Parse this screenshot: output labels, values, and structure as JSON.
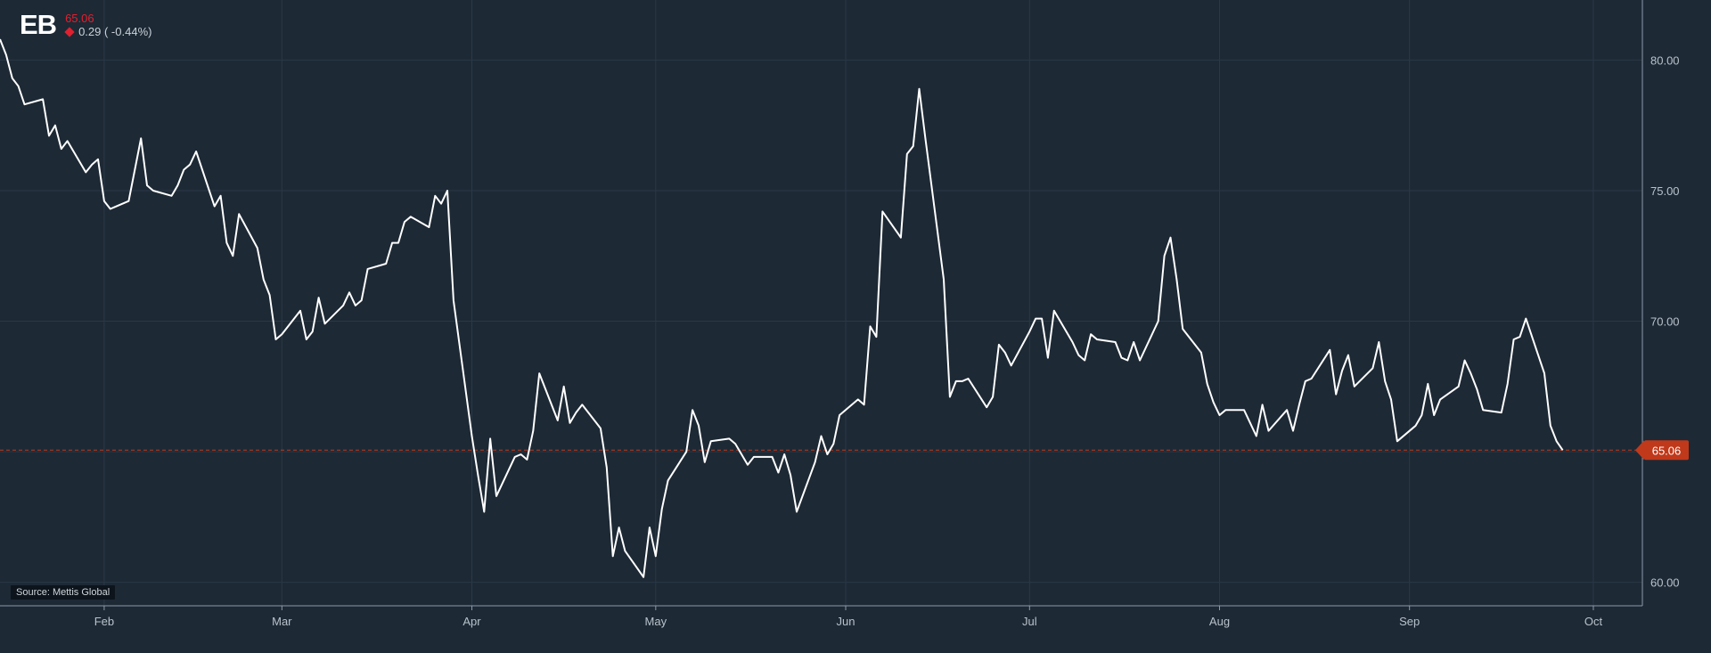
{
  "header": {
    "symbol": "EB",
    "price": "65.06",
    "change": "0.29 ( -0.44%)"
  },
  "source": "Source: Mettis Global",
  "colors": {
    "background": "#1d2935",
    "line": "#ffffff",
    "last_price_marker": "#c0391b",
    "reference_line": "#c0391b",
    "down": "#e0202e"
  },
  "icons": [
    "down-diamond-icon",
    "last-price-arrow-icon"
  ],
  "chart_data": {
    "type": "line",
    "title": "",
    "xlabel": "",
    "ylabel": "",
    "x_ticks": [
      "Feb",
      "Mar",
      "Apr",
      "May",
      "Jun",
      "Jul",
      "Aug",
      "Sep",
      "Oct"
    ],
    "y_ticks": [
      "60.00",
      "65.00",
      "70.00",
      "75.00",
      "80.00"
    ],
    "ylim": [
      59.1,
      82.3
    ],
    "x_range": [
      "2024-01-15",
      "2024-10-09"
    ],
    "grid": true,
    "last_price": 65.06,
    "last_price_label": "65.06",
    "series": [
      {
        "points": [
          [
            "2024-01-15",
            80.8
          ],
          [
            "2024-01-16",
            80.2
          ],
          [
            "2024-01-17",
            79.3
          ],
          [
            "2024-01-18",
            79.0
          ],
          [
            "2024-01-19",
            78.3
          ],
          [
            "2024-01-22",
            78.5
          ],
          [
            "2024-01-23",
            77.1
          ],
          [
            "2024-01-24",
            77.5
          ],
          [
            "2024-01-25",
            76.6
          ],
          [
            "2024-01-26",
            76.9
          ],
          [
            "2024-01-29",
            75.7
          ],
          [
            "2024-01-30",
            76.0
          ],
          [
            "2024-01-31",
            76.2
          ],
          [
            "2024-02-01",
            74.6
          ],
          [
            "2024-02-02",
            74.3
          ],
          [
            "2024-02-05",
            74.6
          ],
          [
            "2024-02-06",
            75.8
          ],
          [
            "2024-02-07",
            77.0
          ],
          [
            "2024-02-08",
            75.2
          ],
          [
            "2024-02-09",
            75.0
          ],
          [
            "2024-02-12",
            74.8
          ],
          [
            "2024-02-13",
            75.2
          ],
          [
            "2024-02-14",
            75.8
          ],
          [
            "2024-02-15",
            76.0
          ],
          [
            "2024-02-16",
            76.5
          ],
          [
            "2024-02-19",
            74.4
          ],
          [
            "2024-02-20",
            74.8
          ],
          [
            "2024-02-21",
            73.0
          ],
          [
            "2024-02-22",
            72.5
          ],
          [
            "2024-02-23",
            74.1
          ],
          [
            "2024-02-26",
            72.8
          ],
          [
            "2024-02-27",
            71.6
          ],
          [
            "2024-02-28",
            71.0
          ],
          [
            "2024-02-29",
            69.3
          ],
          [
            "2024-03-01",
            69.5
          ],
          [
            "2024-03-04",
            70.4
          ],
          [
            "2024-03-05",
            69.3
          ],
          [
            "2024-03-06",
            69.6
          ],
          [
            "2024-03-07",
            70.9
          ],
          [
            "2024-03-08",
            69.9
          ],
          [
            "2024-03-11",
            70.6
          ],
          [
            "2024-03-12",
            71.1
          ],
          [
            "2024-03-13",
            70.6
          ],
          [
            "2024-03-14",
            70.8
          ],
          [
            "2024-03-15",
            72.0
          ],
          [
            "2024-03-18",
            72.2
          ],
          [
            "2024-03-19",
            73.0
          ],
          [
            "2024-03-20",
            73.0
          ],
          [
            "2024-03-21",
            73.8
          ],
          [
            "2024-03-22",
            74.0
          ],
          [
            "2024-03-25",
            73.6
          ],
          [
            "2024-03-26",
            74.8
          ],
          [
            "2024-03-27",
            74.5
          ],
          [
            "2024-03-28",
            75.0
          ],
          [
            "2024-03-29",
            70.8
          ],
          [
            "2024-04-01",
            65.6
          ],
          [
            "2024-04-02",
            64.1
          ],
          [
            "2024-04-03",
            62.7
          ],
          [
            "2024-04-04",
            65.5
          ],
          [
            "2024-04-05",
            63.3
          ],
          [
            "2024-04-08",
            64.8
          ],
          [
            "2024-04-09",
            64.9
          ],
          [
            "2024-04-10",
            64.7
          ],
          [
            "2024-04-11",
            65.8
          ],
          [
            "2024-04-12",
            68.0
          ],
          [
            "2024-04-15",
            66.2
          ],
          [
            "2024-04-16",
            67.5
          ],
          [
            "2024-04-17",
            66.1
          ],
          [
            "2024-04-18",
            66.5
          ],
          [
            "2024-04-19",
            66.8
          ],
          [
            "2024-04-22",
            65.9
          ],
          [
            "2024-04-23",
            64.4
          ],
          [
            "2024-04-24",
            61.0
          ],
          [
            "2024-04-25",
            62.1
          ],
          [
            "2024-04-26",
            61.2
          ],
          [
            "2024-04-29",
            60.2
          ],
          [
            "2024-04-30",
            62.1
          ],
          [
            "2024-05-01",
            61.0
          ],
          [
            "2024-05-02",
            62.8
          ],
          [
            "2024-05-03",
            63.9
          ],
          [
            "2024-05-06",
            65.0
          ],
          [
            "2024-05-07",
            66.6
          ],
          [
            "2024-05-08",
            66.0
          ],
          [
            "2024-05-09",
            64.6
          ],
          [
            "2024-05-10",
            65.4
          ],
          [
            "2024-05-13",
            65.5
          ],
          [
            "2024-05-14",
            65.3
          ],
          [
            "2024-05-15",
            64.9
          ],
          [
            "2024-05-16",
            64.5
          ],
          [
            "2024-05-17",
            64.8
          ],
          [
            "2024-05-20",
            64.8
          ],
          [
            "2024-05-21",
            64.2
          ],
          [
            "2024-05-22",
            64.9
          ],
          [
            "2024-05-23",
            64.1
          ],
          [
            "2024-05-24",
            62.7
          ],
          [
            "2024-05-27",
            64.6
          ],
          [
            "2024-05-28",
            65.6
          ],
          [
            "2024-05-29",
            64.9
          ],
          [
            "2024-05-30",
            65.3
          ],
          [
            "2024-05-31",
            66.4
          ],
          [
            "2024-06-03",
            67.0
          ],
          [
            "2024-06-04",
            66.8
          ],
          [
            "2024-06-05",
            69.8
          ],
          [
            "2024-06-06",
            69.4
          ],
          [
            "2024-06-07",
            74.2
          ],
          [
            "2024-06-10",
            73.2
          ],
          [
            "2024-06-11",
            76.4
          ],
          [
            "2024-06-12",
            76.7
          ],
          [
            "2024-06-13",
            78.9
          ],
          [
            "2024-06-14",
            77.0
          ],
          [
            "2024-06-17",
            71.6
          ],
          [
            "2024-06-18",
            67.1
          ],
          [
            "2024-06-19",
            67.7
          ],
          [
            "2024-06-20",
            67.7
          ],
          [
            "2024-06-21",
            67.8
          ],
          [
            "2024-06-24",
            66.7
          ],
          [
            "2024-06-25",
            67.1
          ],
          [
            "2024-06-26",
            69.1
          ],
          [
            "2024-06-27",
            68.8
          ],
          [
            "2024-06-28",
            68.3
          ],
          [
            "2024-07-01",
            69.6
          ],
          [
            "2024-07-02",
            70.1
          ],
          [
            "2024-07-03",
            70.1
          ],
          [
            "2024-07-04",
            68.6
          ],
          [
            "2024-07-05",
            70.4
          ],
          [
            "2024-07-08",
            69.2
          ],
          [
            "2024-07-09",
            68.7
          ],
          [
            "2024-07-10",
            68.5
          ],
          [
            "2024-07-11",
            69.5
          ],
          [
            "2024-07-12",
            69.3
          ],
          [
            "2024-07-15",
            69.2
          ],
          [
            "2024-07-16",
            68.6
          ],
          [
            "2024-07-17",
            68.5
          ],
          [
            "2024-07-18",
            69.2
          ],
          [
            "2024-07-19",
            68.5
          ],
          [
            "2024-07-22",
            70.0
          ],
          [
            "2024-07-23",
            72.5
          ],
          [
            "2024-07-24",
            73.2
          ],
          [
            "2024-07-25",
            71.6
          ],
          [
            "2024-07-26",
            69.7
          ],
          [
            "2024-07-29",
            68.8
          ],
          [
            "2024-07-30",
            67.6
          ],
          [
            "2024-07-31",
            66.9
          ],
          [
            "2024-08-01",
            66.4
          ],
          [
            "2024-08-02",
            66.6
          ],
          [
            "2024-08-05",
            66.6
          ],
          [
            "2024-08-06",
            66.1
          ],
          [
            "2024-08-07",
            65.6
          ],
          [
            "2024-08-08",
            66.8
          ],
          [
            "2024-08-09",
            65.8
          ],
          [
            "2024-08-12",
            66.6
          ],
          [
            "2024-08-13",
            65.8
          ],
          [
            "2024-08-14",
            66.8
          ],
          [
            "2024-08-15",
            67.7
          ],
          [
            "2024-08-16",
            67.8
          ],
          [
            "2024-08-19",
            68.9
          ],
          [
            "2024-08-20",
            67.2
          ],
          [
            "2024-08-21",
            68.1
          ],
          [
            "2024-08-22",
            68.7
          ],
          [
            "2024-08-23",
            67.5
          ],
          [
            "2024-08-26",
            68.2
          ],
          [
            "2024-08-27",
            69.2
          ],
          [
            "2024-08-28",
            67.7
          ],
          [
            "2024-08-29",
            67.0
          ],
          [
            "2024-08-30",
            65.4
          ],
          [
            "2024-09-02",
            66.0
          ],
          [
            "2024-09-03",
            66.4
          ],
          [
            "2024-09-04",
            67.6
          ],
          [
            "2024-09-05",
            66.4
          ],
          [
            "2024-09-06",
            67.0
          ],
          [
            "2024-09-09",
            67.5
          ],
          [
            "2024-09-10",
            68.5
          ],
          [
            "2024-09-11",
            68.0
          ],
          [
            "2024-09-12",
            67.4
          ],
          [
            "2024-09-13",
            66.6
          ],
          [
            "2024-09-16",
            66.5
          ],
          [
            "2024-09-17",
            67.6
          ],
          [
            "2024-09-18",
            69.3
          ],
          [
            "2024-09-19",
            69.4
          ],
          [
            "2024-09-20",
            70.1
          ],
          [
            "2024-09-23",
            68.0
          ],
          [
            "2024-09-24",
            66.0
          ],
          [
            "2024-09-25",
            65.4
          ],
          [
            "2024-09-26",
            65.06
          ]
        ]
      }
    ]
  }
}
